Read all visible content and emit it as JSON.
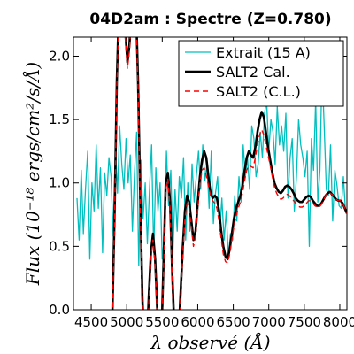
{
  "chart_data": {
    "type": "line",
    "title": "04D2am : Spectre (Z=0.780)",
    "xlabel": "λ observé (Å)",
    "ylabel": "Flux (10⁻¹⁸ ergs/cm²/s/Å)",
    "xlim": [
      4250,
      8100
    ],
    "ylim": [
      0.0,
      2.15
    ],
    "xticks": [
      4500,
      5000,
      5500,
      6000,
      6500,
      7000,
      7500,
      8000
    ],
    "yticks": [
      0.0,
      0.5,
      1.0,
      1.5,
      2.0
    ],
    "xtick_labels": [
      "4500",
      "5000",
      "5500",
      "6000",
      "6500",
      "7000",
      "7500",
      "8000"
    ],
    "ytick_labels": [
      "0.0",
      "0.5",
      "1.0",
      "1.5",
      "2.0"
    ],
    "legend_position": "top-right",
    "series": [
      {
        "name": "Extrait (15 A)",
        "color": "#00bfbf",
        "style": "solid",
        "x": [
          4300,
          4330,
          4360,
          4390,
          4420,
          4450,
          4480,
          4510,
          4540,
          4570,
          4600,
          4630,
          4660,
          4690,
          4720,
          4750,
          4780,
          4810,
          4840,
          4870,
          4900,
          4930,
          4960,
          4990,
          5020,
          5050,
          5080,
          5110,
          5140,
          5170,
          5200,
          5230,
          5260,
          5290,
          5320,
          5350,
          5380,
          5410,
          5440,
          5470,
          5500,
          5530,
          5560,
          5590,
          5620,
          5650,
          5680,
          5710,
          5740,
          5770,
          5800,
          5830,
          5860,
          5890,
          5920,
          5950,
          5980,
          6010,
          6040,
          6070,
          6100,
          6130,
          6160,
          6190,
          6220,
          6250,
          6280,
          6310,
          6340,
          6370,
          6400,
          6430,
          6460,
          6490,
          6520,
          6550,
          6580,
          6610,
          6640,
          6670,
          6700,
          6730,
          6760,
          6790,
          6820,
          6850,
          6880,
          6910,
          6940,
          6970,
          7000,
          7030,
          7060,
          7090,
          7120,
          7150,
          7180,
          7210,
          7240,
          7270,
          7300,
          7330,
          7360,
          7390,
          7420,
          7450,
          7480,
          7510,
          7540,
          7570,
          7600,
          7630,
          7660,
          7690,
          7720,
          7750,
          7780,
          7810,
          7840,
          7870,
          7900,
          7930,
          7960,
          7990,
          8020,
          8050,
          8080
        ],
        "y": [
          0.88,
          0.55,
          1.1,
          0.6,
          0.95,
          1.25,
          0.4,
          1.0,
          0.78,
          1.3,
          0.8,
          1.12,
          0.45,
          1.08,
          0.9,
          1.2,
          1.05,
          0.58,
          1.28,
          0.92,
          1.45,
          1.15,
          0.95,
          1.35,
          1.0,
          1.22,
          0.62,
          1.08,
          1.4,
          0.35,
          1.18,
          0.72,
          1.0,
          0.52,
          0.95,
          1.3,
          0.45,
          1.12,
          0.78,
          1.0,
          0.4,
          0.58,
          1.25,
          0.82,
          1.1,
          0.45,
          0.95,
          0.62,
          1.05,
          0.88,
          1.2,
          0.55,
          1.0,
          0.62,
          1.15,
          0.85,
          1.05,
          1.25,
          0.95,
          1.3,
          1.02,
          1.15,
          0.8,
          1.25,
          0.68,
          0.92,
          1.05,
          0.62,
          0.88,
          0.55,
          0.78,
          0.42,
          0.6,
          0.55,
          0.9,
          0.7,
          1.05,
          0.85,
          1.3,
          1.05,
          1.2,
          0.95,
          1.45,
          1.35,
          1.05,
          1.15,
          1.4,
          1.2,
          1.55,
          1.65,
          1.25,
          1.5,
          1.4,
          1.15,
          1.6,
          1.3,
          1.45,
          1.25,
          1.55,
          0.88,
          1.2,
          1.35,
          0.78,
          1.05,
          1.5,
          1.3,
          1.2,
          1.05,
          1.25,
          0.5,
          1.35,
          1.1,
          1.65,
          0.85,
          1.1,
          1.9,
          1.45,
          0.95,
          0.9,
          1.3,
          0.7,
          1.1,
          0.98,
          0.82,
          0.8,
          1.05,
          0.78
        ]
      },
      {
        "name": "SALT2 Cal.",
        "color": "#000000",
        "style": "solid-thick",
        "x": [
          4800,
          4830,
          4860,
          4890,
          4920,
          4950,
          4980,
          5010,
          5040,
          5070,
          5100,
          5130,
          5160,
          5190,
          5220,
          5250,
          5280,
          5310,
          5340,
          5370,
          5400,
          5430,
          5460,
          5490,
          5520,
          5550,
          5580,
          5610,
          5640,
          5670,
          5700,
          5730,
          5760,
          5790,
          5820,
          5850,
          5880,
          5910,
          5940,
          5970,
          6000,
          6030,
          6060,
          6090,
          6120,
          6150,
          6180,
          6210,
          6240,
          6270,
          6300,
          6330,
          6360,
          6390,
          6420,
          6450,
          6480,
          6510,
          6540,
          6570,
          6600,
          6630,
          6660,
          6690,
          6720,
          6750,
          6780,
          6810,
          6840,
          6870,
          6900,
          6930,
          6960,
          6990,
          7020,
          7050,
          7080,
          7110,
          7140,
          7170,
          7200,
          7230,
          7260,
          7290,
          7320,
          7350,
          7380,
          7410,
          7440,
          7470,
          7500,
          7530,
          7560,
          7590,
          7620,
          7650,
          7680,
          7710,
          7740,
          7770,
          7800,
          7830,
          7860,
          7890,
          7920,
          7950,
          7980,
          8010,
          8040,
          8070,
          8100
        ],
        "y": [
          0.0,
          0.8,
          1.8,
          2.4,
          2.6,
          2.5,
          2.2,
          1.95,
          2.1,
          2.45,
          2.6,
          2.4,
          1.8,
          0.9,
          0.1,
          -0.4,
          -0.3,
          0.1,
          0.45,
          0.6,
          0.4,
          0.0,
          -0.3,
          -0.2,
          0.4,
          1.0,
          1.08,
          0.85,
          0.3,
          -0.15,
          -0.35,
          -0.2,
          0.15,
          0.5,
          0.78,
          0.9,
          0.85,
          0.7,
          0.55,
          0.62,
          0.85,
          1.05,
          1.18,
          1.25,
          1.2,
          1.05,
          0.92,
          0.88,
          0.9,
          0.88,
          0.78,
          0.62,
          0.5,
          0.42,
          0.4,
          0.48,
          0.6,
          0.72,
          0.8,
          0.85,
          0.9,
          0.98,
          1.1,
          1.2,
          1.25,
          1.22,
          1.2,
          1.28,
          1.4,
          1.5,
          1.56,
          1.52,
          1.4,
          1.28,
          1.18,
          1.08,
          1.0,
          0.96,
          0.93,
          0.92,
          0.94,
          0.97,
          0.98,
          0.97,
          0.95,
          0.92,
          0.88,
          0.86,
          0.85,
          0.85,
          0.87,
          0.89,
          0.9,
          0.89,
          0.86,
          0.84,
          0.82,
          0.82,
          0.84,
          0.87,
          0.9,
          0.92,
          0.93,
          0.91,
          0.89,
          0.87,
          0.86,
          0.86,
          0.84,
          0.8,
          0.76
        ]
      },
      {
        "name": "SALT2 (C.L.)",
        "color": "#ff0000",
        "style": "dashed",
        "x": [
          4800,
          4830,
          4860,
          4890,
          4920,
          4950,
          4980,
          5010,
          5040,
          5070,
          5100,
          5130,
          5160,
          5190,
          5220,
          5250,
          5280,
          5310,
          5340,
          5370,
          5400,
          5430,
          5460,
          5490,
          5520,
          5550,
          5580,
          5610,
          5640,
          5670,
          5700,
          5730,
          5760,
          5790,
          5820,
          5850,
          5880,
          5910,
          5940,
          5970,
          6000,
          6030,
          6060,
          6090,
          6120,
          6150,
          6180,
          6210,
          6240,
          6270,
          6300,
          6330,
          6360,
          6390,
          6420,
          6450,
          6480,
          6510,
          6540,
          6570,
          6600,
          6630,
          6660,
          6690,
          6720,
          6750,
          6780,
          6810,
          6840,
          6870,
          6900,
          6930,
          6960,
          6990,
          7020,
          7050,
          7080,
          7110,
          7140,
          7170,
          7200,
          7230,
          7260,
          7290,
          7320,
          7350,
          7380,
          7410,
          7440,
          7470,
          7500,
          7530,
          7560,
          7590,
          7620,
          7650,
          7680,
          7710,
          7740,
          7770,
          7800,
          7830,
          7860,
          7890,
          7920,
          7950,
          7980,
          8010,
          8040,
          8070,
          8100
        ],
        "y": [
          -0.05,
          0.75,
          1.75,
          2.35,
          2.55,
          2.45,
          2.15,
          1.9,
          2.05,
          2.4,
          2.55,
          2.35,
          1.75,
          0.85,
          0.05,
          -0.45,
          -0.35,
          0.05,
          0.4,
          0.55,
          0.35,
          -0.05,
          -0.35,
          -0.25,
          0.35,
          0.95,
          1.03,
          0.8,
          0.25,
          -0.2,
          -0.4,
          -0.25,
          0.1,
          0.45,
          0.72,
          0.84,
          0.8,
          0.65,
          0.5,
          0.58,
          0.8,
          1.0,
          1.1,
          1.12,
          1.06,
          0.98,
          0.9,
          0.86,
          0.84,
          0.8,
          0.7,
          0.56,
          0.44,
          0.38,
          0.37,
          0.44,
          0.55,
          0.66,
          0.74,
          0.8,
          0.85,
          0.92,
          1.02,
          1.1,
          1.14,
          1.13,
          1.12,
          1.2,
          1.3,
          1.38,
          1.42,
          1.38,
          1.3,
          1.22,
          1.14,
          1.05,
          0.97,
          0.92,
          0.89,
          0.87,
          0.88,
          0.9,
          0.91,
          0.9,
          0.88,
          0.86,
          0.84,
          0.82,
          0.81,
          0.81,
          0.82,
          0.84,
          0.86,
          0.86,
          0.84,
          0.82,
          0.81,
          0.81,
          0.83,
          0.86,
          0.9,
          0.92,
          0.92,
          0.91,
          0.89,
          0.87,
          0.86,
          0.86,
          0.84,
          0.8,
          0.76
        ]
      }
    ]
  }
}
